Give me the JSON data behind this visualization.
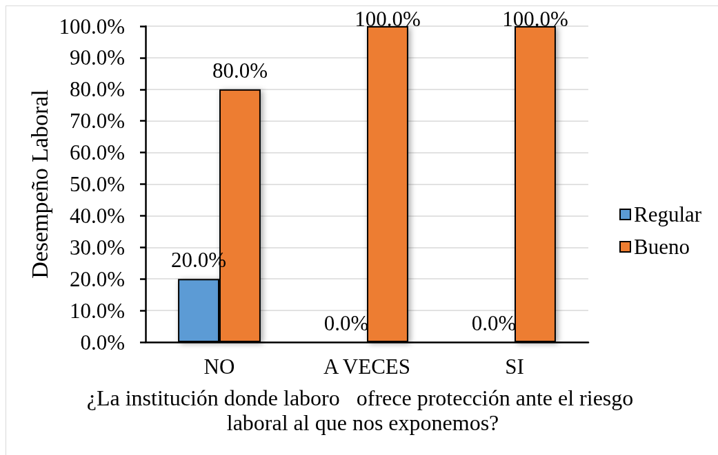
{
  "chart_data": {
    "type": "bar",
    "xlabel": "¿La institución donde laboro   ofrece protección ante el riesgo laboral al que nos exponemos?",
    "ylabel": "Desempeño Laboral",
    "categories": [
      "NO",
      "A VECES",
      "SI"
    ],
    "series": [
      {
        "name": "Regular",
        "color": "#5b9bd5",
        "values": [
          20,
          0,
          0
        ],
        "value_labels": [
          "20.0%",
          "0.0%",
          "0.0%"
        ]
      },
      {
        "name": "Bueno",
        "color": "#ed7d31",
        "values": [
          80,
          100,
          100
        ],
        "value_labels": [
          "80.0%",
          "100.0%",
          "100.0%"
        ]
      }
    ],
    "ylim": [
      0,
      100
    ],
    "yticks": [
      {
        "value": 0,
        "label": "0.0%"
      },
      {
        "value": 10,
        "label": "10.0%"
      },
      {
        "value": 20,
        "label": "20.0%"
      },
      {
        "value": 30,
        "label": "30.0%"
      },
      {
        "value": 40,
        "label": "40.0%"
      },
      {
        "value": 50,
        "label": "50.0%"
      },
      {
        "value": 60,
        "label": "60.0%"
      },
      {
        "value": 70,
        "label": "70.0%"
      },
      {
        "value": 80,
        "label": "80.0%"
      },
      {
        "value": 90,
        "label": "90.0%"
      },
      {
        "value": 100,
        "label": "100.0%"
      }
    ],
    "grid": "y",
    "legend": "right"
  }
}
